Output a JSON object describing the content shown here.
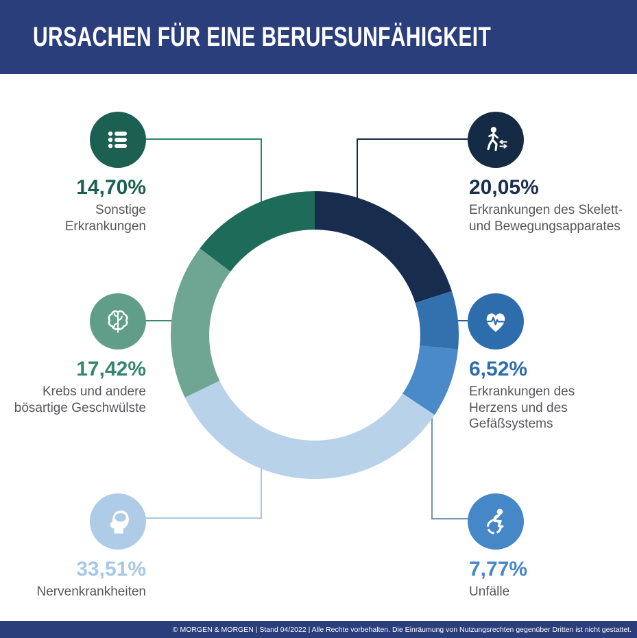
{
  "header": {
    "title": "URSACHEN FÜR EINE BERUFSUNFÄHIGKEIT",
    "bg_color": "#2b3e7c",
    "text_color": "#ffffff"
  },
  "chart_data": {
    "type": "pie",
    "donut": true,
    "title": "Ursachen für eine Berufsunfähigkeit",
    "start_angle_deg": 0,
    "direction": "clockwise",
    "inner_radius_ratio": 0.733,
    "segments": [
      {
        "label": "Erkrankungen des Skelett- und Bewegungsapparates",
        "value": 20.05,
        "display": "20,05%",
        "color": "#182c4d"
      },
      {
        "label": "Erkrankungen des Herzens und des Gefäßsystems",
        "value": 6.52,
        "display": "6,52%",
        "color": "#3270ae"
      },
      {
        "label": "Unfälle",
        "value": 7.77,
        "display": "7,77%",
        "color": "#4a8ac8"
      },
      {
        "label": "Nervenkrankheiten",
        "value": 33.51,
        "display": "33,51%",
        "color": "#b8d2e9"
      },
      {
        "label": "Krebs und andere bösartige Geschwülste",
        "value": 17.42,
        "display": "17,42%",
        "color": "#6ea593"
      },
      {
        "label": "Sonstige Erkrankungen",
        "value": 14.7,
        "display": "14,70%",
        "color": "#1e6b5a"
      }
    ]
  },
  "callouts": [
    {
      "id": "sonstige",
      "icon": "list-icon",
      "percent": "14,70%",
      "label_lines": [
        "Sonstige",
        "Erkrankungen"
      ],
      "accent": "#1b6051",
      "circle_color": "#1b6051"
    },
    {
      "id": "skelett",
      "icon": "walking-person-icon",
      "percent": "20,05%",
      "label_lines": [
        "Erkrankungen des Skelett-",
        "und Bewegungsapparates"
      ],
      "accent": "#1b2f50",
      "circle_color": "#152b45"
    },
    {
      "id": "krebs",
      "icon": "brain-icon",
      "percent": "17,42%",
      "label_lines": [
        "Krebs und andere",
        "bösartige Geschwülste"
      ],
      "accent": "#35866d",
      "circle_color": "#609e8a"
    },
    {
      "id": "herz",
      "icon": "heart-pulse-icon",
      "percent": "6,52%",
      "label_lines": [
        "Erkrankungen des",
        "Herzens und des",
        "Gefäßsystems"
      ],
      "accent": "#2d6dad",
      "circle_color": "#2e6dab"
    },
    {
      "id": "nerven",
      "icon": "head-profile-icon",
      "percent": "33,51%",
      "label_lines": [
        "Nervenkrankheiten"
      ],
      "accent": "#a7c7e6",
      "circle_color": "#aecbe7"
    },
    {
      "id": "unfaelle",
      "icon": "wheelchair-icon",
      "percent": "7,77%",
      "label_lines": [
        "Unfälle"
      ],
      "accent": "#4587c7",
      "circle_color": "#4587c7"
    }
  ],
  "footer": {
    "text": "© MORGEN & MORGEN | Stand 04/2022 | Alle Rechte vorbehalten. Die Einräumung von Nutzungsrechten gegenüber Dritten ist nicht gestattet.",
    "bg_color": "#2b3e7c"
  }
}
